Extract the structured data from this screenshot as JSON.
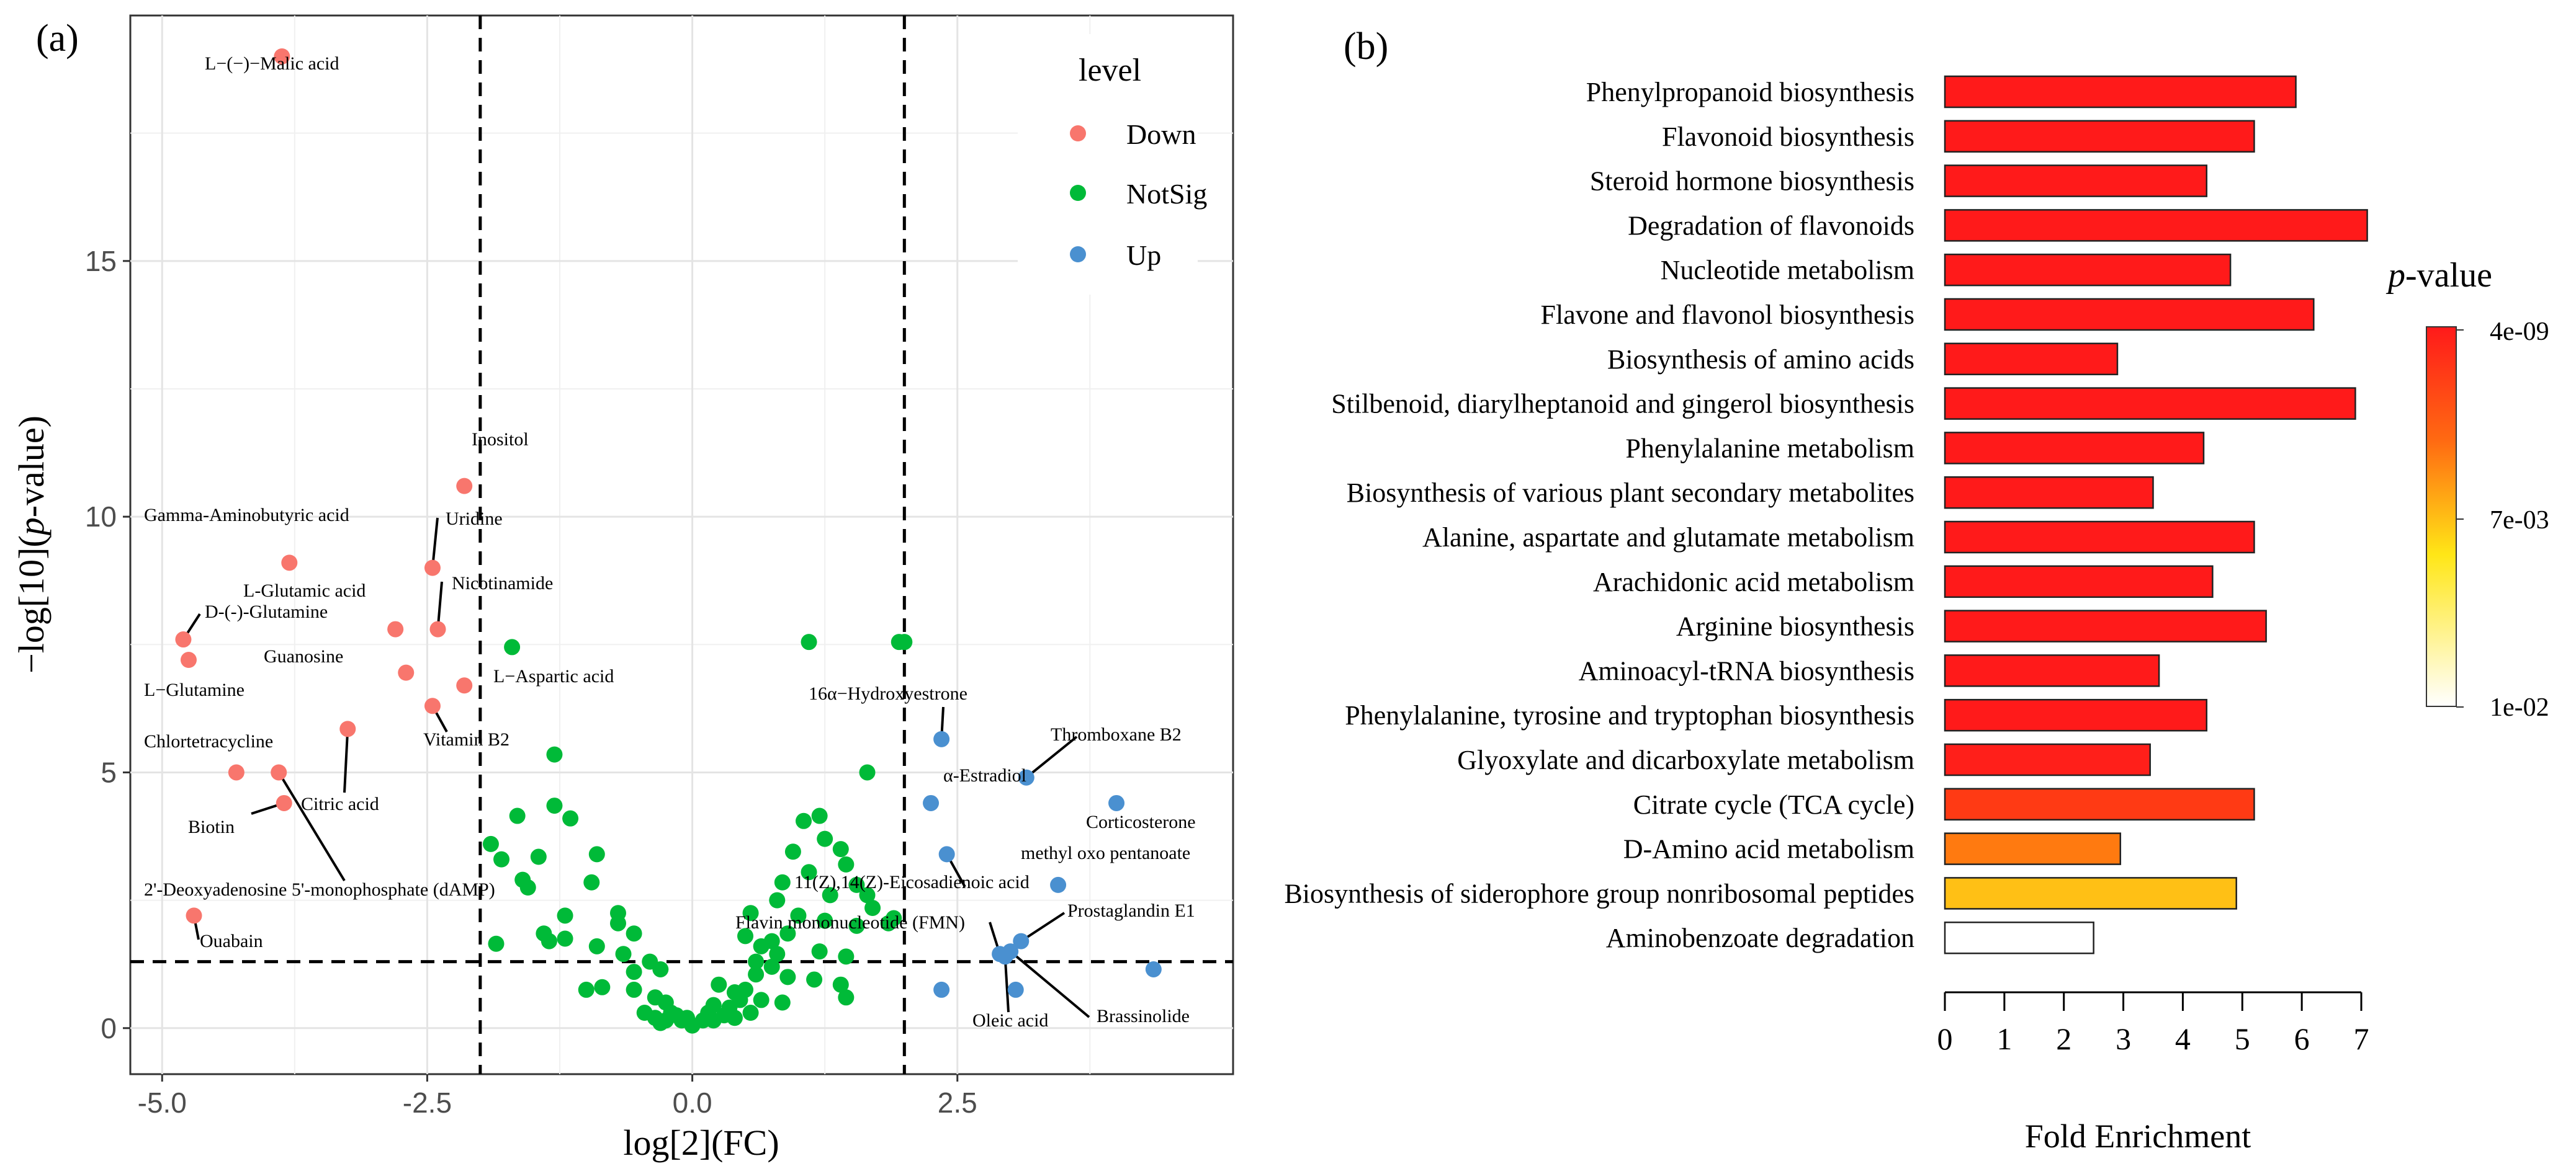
{
  "panel_a": {
    "tag": "(a)",
    "legend": {
      "title": "level",
      "items": [
        {
          "label": "Down",
          "color": "#F8766D"
        },
        {
          "label": "NotSig",
          "color": "#00BA38"
        },
        {
          "label": "Up",
          "color": "#4A90D0"
        }
      ]
    },
    "x_tick_labels": [
      "-5.0",
      "-2.5",
      "0.0",
      "2.5"
    ],
    "y_tick_labels": [
      "0",
      "5",
      "10",
      "15"
    ]
  },
  "panel_b": {
    "tag": "(b)",
    "colorbar": {
      "ticks": [
        "4e-09",
        "7e-03",
        "1e-02"
      ]
    }
  },
  "chart_data": [
    {
      "type": "scatter",
      "title": "",
      "xlabel": "log[2](FC)",
      "ylabel": "-log[10](p-value)",
      "xlim": [
        -5.3,
        5.1
      ],
      "ylim": [
        -0.9,
        19.8
      ],
      "thresholds": {
        "x": [
          -2,
          2
        ],
        "y": 1.3
      },
      "grid": true,
      "legend_position": "top-right",
      "series": [
        {
          "name": "Down",
          "points": [
            {
              "x": -3.87,
              "y": 19.0,
              "label": "L−(−)−Malic acid"
            },
            {
              "x": -2.15,
              "y": 10.6,
              "label": "Inositol"
            },
            {
              "x": -3.8,
              "y": 9.1,
              "label": "Gamma-Aminobutyric acid"
            },
            {
              "x": -2.45,
              "y": 9.0,
              "label": "Uridine"
            },
            {
              "x": -2.4,
              "y": 7.8,
              "label": "Nicotinamide"
            },
            {
              "x": -2.8,
              "y": 7.8,
              "label": "L-Glutamic acid"
            },
            {
              "x": -4.8,
              "y": 7.6,
              "label": "D-(-)-Glutamine"
            },
            {
              "x": -4.75,
              "y": 7.2,
              "label": "L−Glutamine"
            },
            {
              "x": -2.7,
              "y": 6.95,
              "label": "Guanosine"
            },
            {
              "x": -2.15,
              "y": 6.7,
              "label": "L−Aspartic acid"
            },
            {
              "x": -2.45,
              "y": 6.3,
              "label": "Vitamin B2"
            },
            {
              "x": -3.25,
              "y": 5.85,
              "label": "Citric acid"
            },
            {
              "x": -4.3,
              "y": 5.0,
              "label": "Chlortetracycline"
            },
            {
              "x": -3.9,
              "y": 5.0,
              "label": "2'-Deoxyadenosine 5'-monophosphate (dAMP)"
            },
            {
              "x": -3.85,
              "y": 4.4,
              "label": "Biotin"
            },
            {
              "x": -4.7,
              "y": 2.2,
              "label": "Ouabain"
            }
          ]
        },
        {
          "name": "NotSig",
          "points": [
            {
              "x": -1.7,
              "y": 7.45
            },
            {
              "x": 1.1,
              "y": 7.55
            },
            {
              "x": 1.95,
              "y": 7.55
            },
            {
              "x": 2.0,
              "y": 7.55
            },
            {
              "x": -1.3,
              "y": 5.35
            },
            {
              "x": 1.65,
              "y": 5.0
            },
            {
              "x": -1.3,
              "y": 4.35
            },
            {
              "x": -1.15,
              "y": 4.1
            },
            {
              "x": -1.65,
              "y": 4.15
            },
            {
              "x": 1.05,
              "y": 4.05
            },
            {
              "x": 1.2,
              "y": 4.15
            },
            {
              "x": -1.9,
              "y": 3.6
            },
            {
              "x": -1.8,
              "y": 3.3
            },
            {
              "x": -1.45,
              "y": 3.35
            },
            {
              "x": -0.9,
              "y": 3.4
            },
            {
              "x": 1.25,
              "y": 3.7
            },
            {
              "x": 0.95,
              "y": 3.45
            },
            {
              "x": 1.4,
              "y": 3.5
            },
            {
              "x": 1.45,
              "y": 3.2
            },
            {
              "x": 1.1,
              "y": 3.05
            },
            {
              "x": -1.6,
              "y": 2.9
            },
            {
              "x": -1.55,
              "y": 2.75
            },
            {
              "x": -0.95,
              "y": 2.85
            },
            {
              "x": 0.85,
              "y": 2.85
            },
            {
              "x": 1.55,
              "y": 2.8
            },
            {
              "x": 1.65,
              "y": 2.6
            },
            {
              "x": 1.3,
              "y": 2.6
            },
            {
              "x": 0.8,
              "y": 2.5
            },
            {
              "x": 1.7,
              "y": 2.35
            },
            {
              "x": -1.2,
              "y": 2.2
            },
            {
              "x": -0.7,
              "y": 2.25
            },
            {
              "x": -0.7,
              "y": 2.05
            },
            {
              "x": 0.55,
              "y": 2.25
            },
            {
              "x": 1.0,
              "y": 2.2
            },
            {
              "x": 1.25,
              "y": 2.1
            },
            {
              "x": 1.55,
              "y": 2.0
            },
            {
              "x": 1.9,
              "y": 2.15
            },
            {
              "x": 1.85,
              "y": 2.05
            },
            {
              "x": -1.4,
              "y": 1.85
            },
            {
              "x": -1.2,
              "y": 1.75
            },
            {
              "x": -1.35,
              "y": 1.7
            },
            {
              "x": -1.85,
              "y": 1.65
            },
            {
              "x": -0.55,
              "y": 1.85
            },
            {
              "x": -0.9,
              "y": 1.6
            },
            {
              "x": -0.65,
              "y": 1.45
            },
            {
              "x": 0.5,
              "y": 1.8
            },
            {
              "x": 0.75,
              "y": 1.7
            },
            {
              "x": 0.9,
              "y": 1.85
            },
            {
              "x": 0.65,
              "y": 1.6
            },
            {
              "x": 1.45,
              "y": 1.4
            },
            {
              "x": 1.2,
              "y": 1.5
            },
            {
              "x": 0.8,
              "y": 1.45
            },
            {
              "x": -0.4,
              "y": 1.3
            },
            {
              "x": -0.3,
              "y": 1.15
            },
            {
              "x": 0.6,
              "y": 1.3
            },
            {
              "x": 0.75,
              "y": 1.2
            },
            {
              "x": -0.55,
              "y": 1.1
            },
            {
              "x": 0.6,
              "y": 1.05
            },
            {
              "x": 0.9,
              "y": 1.0
            },
            {
              "x": 1.15,
              "y": 0.95
            },
            {
              "x": 1.4,
              "y": 0.85
            },
            {
              "x": 1.45,
              "y": 0.6
            },
            {
              "x": -0.85,
              "y": 0.8
            },
            {
              "x": -1.0,
              "y": 0.75
            },
            {
              "x": -0.55,
              "y": 0.75
            },
            {
              "x": -0.35,
              "y": 0.6
            },
            {
              "x": -0.25,
              "y": 0.5
            },
            {
              "x": 0.25,
              "y": 0.85
            },
            {
              "x": 0.4,
              "y": 0.7
            },
            {
              "x": 0.5,
              "y": 0.75
            },
            {
              "x": 0.65,
              "y": 0.55
            },
            {
              "x": 0.85,
              "y": 0.5
            },
            {
              "x": 0.2,
              "y": 0.45
            },
            {
              "x": 0.35,
              "y": 0.4
            },
            {
              "x": 0.45,
              "y": 0.55
            },
            {
              "x": 0.55,
              "y": 0.3
            },
            {
              "x": 0.4,
              "y": 0.2
            },
            {
              "x": 0.3,
              "y": 0.25
            },
            {
              "x": -0.45,
              "y": 0.3
            },
            {
              "x": -0.35,
              "y": 0.2
            },
            {
              "x": -0.2,
              "y": 0.3
            },
            {
              "x": -0.1,
              "y": 0.15
            },
            {
              "x": 0.0,
              "y": 0.05
            },
            {
              "x": 0.1,
              "y": 0.15
            },
            {
              "x": 0.15,
              "y": 0.3
            },
            {
              "x": -0.25,
              "y": 0.15
            },
            {
              "x": -0.15,
              "y": 0.25
            },
            {
              "x": -0.05,
              "y": 0.2
            },
            {
              "x": 0.2,
              "y": 0.15
            },
            {
              "x": -0.3,
              "y": 0.1
            }
          ]
        },
        {
          "name": "Up",
          "points": [
            {
              "x": 2.35,
              "y": 5.65,
              "label": "16α−Hydroxyestrone"
            },
            {
              "x": 3.15,
              "y": 4.9,
              "label": "Thromboxane B2"
            },
            {
              "x": 2.25,
              "y": 4.4,
              "label": "α-Estradiol"
            },
            {
              "x": 4.0,
              "y": 4.4,
              "label": "Corticosterone"
            },
            {
              "x": 2.4,
              "y": 3.4,
              "label": "11(Z),14(Z)-Eicosadienoic acid"
            },
            {
              "x": 3.45,
              "y": 2.8,
              "label": "methyl oxo pentanoate"
            },
            {
              "x": 3.1,
              "y": 1.7,
              "label": "Prostaglandin E1"
            },
            {
              "x": 3.0,
              "y": 1.5,
              "label": "Brassinolide"
            },
            {
              "x": 2.9,
              "y": 1.45,
              "label": "Flavin mononucleotide (FMN)"
            },
            {
              "x": 2.95,
              "y": 1.4,
              "label": "Oleic acid"
            },
            {
              "x": 2.35,
              "y": 0.75
            },
            {
              "x": 3.05,
              "y": 0.75
            },
            {
              "x": 4.35,
              "y": 1.15
            }
          ]
        }
      ]
    },
    {
      "type": "bar",
      "orientation": "horizontal",
      "title": "",
      "xlabel": "Fold Enrichment",
      "ylabel": "",
      "xlim": [
        0,
        7
      ],
      "x_ticks": [
        0,
        1,
        2,
        3,
        4,
        5,
        6,
        7
      ],
      "color_scale": {
        "name": "p-value",
        "ticks": [
          "4e-09",
          "7e-03",
          "1e-02"
        ],
        "low_color": "#FF1A1A",
        "mid_color": "#FFE617",
        "high_color": "#FFFFFF"
      },
      "categories": [
        "Phenylpropanoid biosynthesis",
        "Flavonoid biosynthesis",
        "Steroid hormone biosynthesis",
        "Degradation of flavonoids",
        "Nucleotide metabolism",
        "Flavone and flavonol biosynthesis",
        "Biosynthesis of amino acids",
        "Stilbenoid, diarylheptanoid and gingerol biosynthesis",
        "Phenylalanine metabolism",
        "Biosynthesis of various plant secondary metabolites",
        "Alanine, aspartate and glutamate metabolism",
        "Arachidonic acid metabolism",
        "Arginine biosynthesis",
        "Aminoacyl-tRNA biosynthesis",
        "Phenylalanine, tyrosine and tryptophan biosynthesis",
        "Glyoxylate and dicarboxylate metabolism",
        "Citrate cycle (TCA cycle)",
        "D-Amino acid metabolism",
        "Biosynthesis of siderophore group nonribosomal peptides",
        "Aminobenzoate degradation"
      ],
      "values": [
        5.9,
        5.2,
        4.4,
        7.1,
        4.8,
        6.2,
        2.9,
        6.9,
        4.35,
        3.5,
        5.2,
        4.5,
        5.4,
        3.6,
        4.4,
        3.45,
        5.2,
        2.95,
        4.9,
        2.5
      ],
      "colors": [
        "#FF1A1A",
        "#FF1A1A",
        "#FF1A1A",
        "#FF1A1A",
        "#FF1A1A",
        "#FF1A1A",
        "#FF1A1A",
        "#FF1A1A",
        "#FF1A1A",
        "#FF1A1A",
        "#FF1A1A",
        "#FF1A1A",
        "#FF1A1A",
        "#FF1A1A",
        "#FF1A1A",
        "#FF1F1A",
        "#FF3A14",
        "#FF7A10",
        "#FFC015",
        "#FFFFFF"
      ]
    }
  ]
}
